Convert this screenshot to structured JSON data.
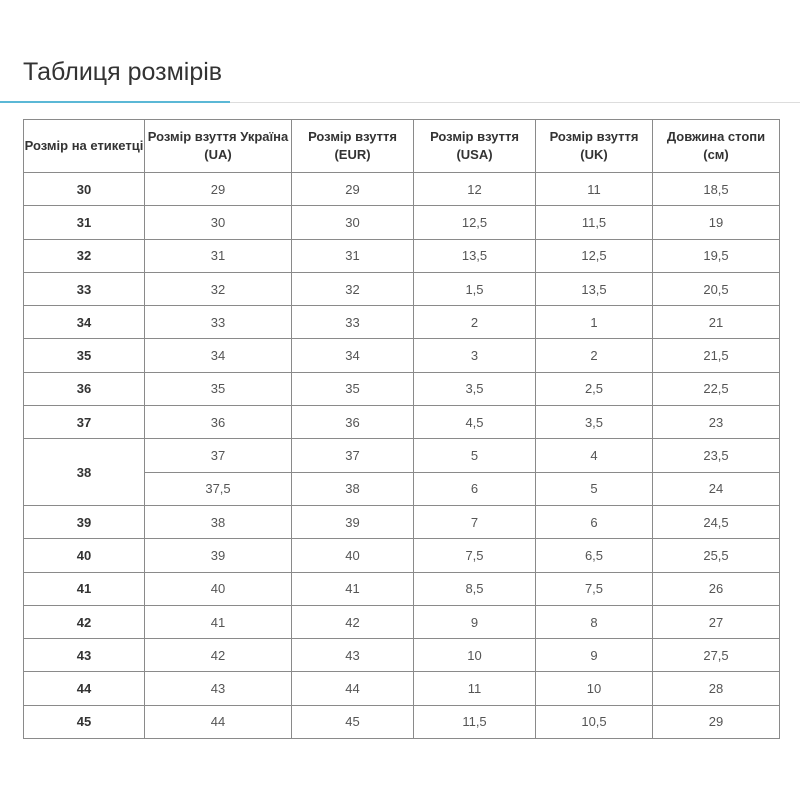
{
  "title": "Таблиця розмірів",
  "headers": [
    "Розмір на етикетці",
    "Розмір взуття Україна (UA)",
    "Розмір взуття (EUR)",
    "Розмір взуття (USA)",
    "Розмір взуття (UK)",
    "Довжина стопи (см)"
  ],
  "rows": [
    {
      "label": "30",
      "cells": [
        [
          "29",
          "29",
          "12",
          "11",
          "18,5"
        ]
      ]
    },
    {
      "label": "31",
      "cells": [
        [
          "30",
          "30",
          "12,5",
          "11,5",
          "19"
        ]
      ]
    },
    {
      "label": "32",
      "cells": [
        [
          "31",
          "31",
          "13,5",
          "12,5",
          "19,5"
        ]
      ]
    },
    {
      "label": "33",
      "cells": [
        [
          "32",
          "32",
          "1,5",
          "13,5",
          "20,5"
        ]
      ]
    },
    {
      "label": "34",
      "cells": [
        [
          "33",
          "33",
          "2",
          "1",
          "21"
        ]
      ]
    },
    {
      "label": "35",
      "cells": [
        [
          "34",
          "34",
          "3",
          "2",
          "21,5"
        ]
      ]
    },
    {
      "label": "36",
      "cells": [
        [
          "35",
          "35",
          "3,5",
          "2,5",
          "22,5"
        ]
      ]
    },
    {
      "label": "37",
      "cells": [
        [
          "36",
          "36",
          "4,5",
          "3,5",
          "23"
        ]
      ]
    },
    {
      "label": "38",
      "cells": [
        [
          "37",
          "37",
          "5",
          "4",
          "23,5"
        ],
        [
          "37,5",
          "38",
          "6",
          "5",
          "24"
        ]
      ]
    },
    {
      "label": "39",
      "cells": [
        [
          "38",
          "39",
          "7",
          "6",
          "24,5"
        ]
      ]
    },
    {
      "label": "40",
      "cells": [
        [
          "39",
          "40",
          "7,5",
          "6,5",
          "25,5"
        ]
      ]
    },
    {
      "label": "41",
      "cells": [
        [
          "40",
          "41",
          "8,5",
          "7,5",
          "26"
        ]
      ]
    },
    {
      "label": "42",
      "cells": [
        [
          "41",
          "42",
          "9",
          "8",
          "27"
        ]
      ]
    },
    {
      "label": "43",
      "cells": [
        [
          "42",
          "43",
          "10",
          "9",
          "27,5"
        ]
      ]
    },
    {
      "label": "44",
      "cells": [
        [
          "43",
          "44",
          "11",
          "10",
          "28"
        ]
      ]
    },
    {
      "label": "45",
      "cells": [
        [
          "44",
          "45",
          "11,5",
          "10,5",
          "29"
        ]
      ]
    }
  ],
  "colors": {
    "accent": "#5bb8d6",
    "border": "#8a8a8a"
  }
}
